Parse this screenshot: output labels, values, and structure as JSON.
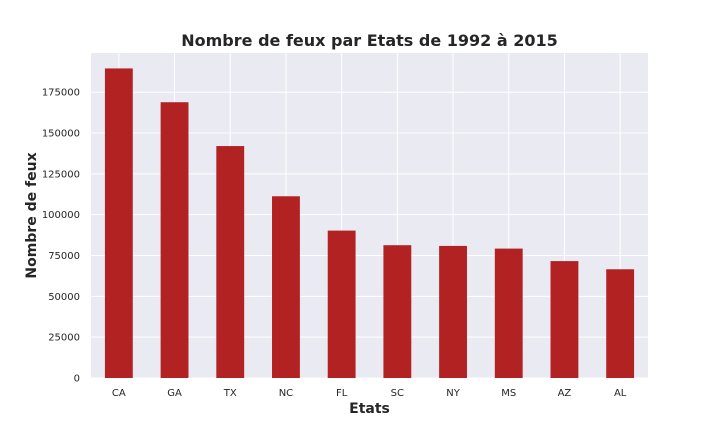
{
  "chart_data": {
    "type": "bar",
    "title": "Nombre de feux par Etats de 1992 à 2015",
    "xlabel": "Etats",
    "ylabel": "Nombre de feux",
    "categories": [
      "CA",
      "GA",
      "TX",
      "NC",
      "FL",
      "SC",
      "NY",
      "MS",
      "AZ",
      "AL"
    ],
    "values": [
      189550,
      168867,
      142021,
      111277,
      90261,
      81315,
      80870,
      79230,
      71586,
      66570
    ],
    "ylim": [
      0,
      199000
    ],
    "yticks": [
      0,
      25000,
      50000,
      75000,
      100000,
      125000,
      150000,
      175000
    ],
    "ytick_labels": [
      "0",
      "25000",
      "50000",
      "75000",
      "100000",
      "125000",
      "150000",
      "175000"
    ],
    "grid": true,
    "bar_color": "#b22222",
    "background_color": "#eaeaf2",
    "grid_color": "#ffffff"
  }
}
